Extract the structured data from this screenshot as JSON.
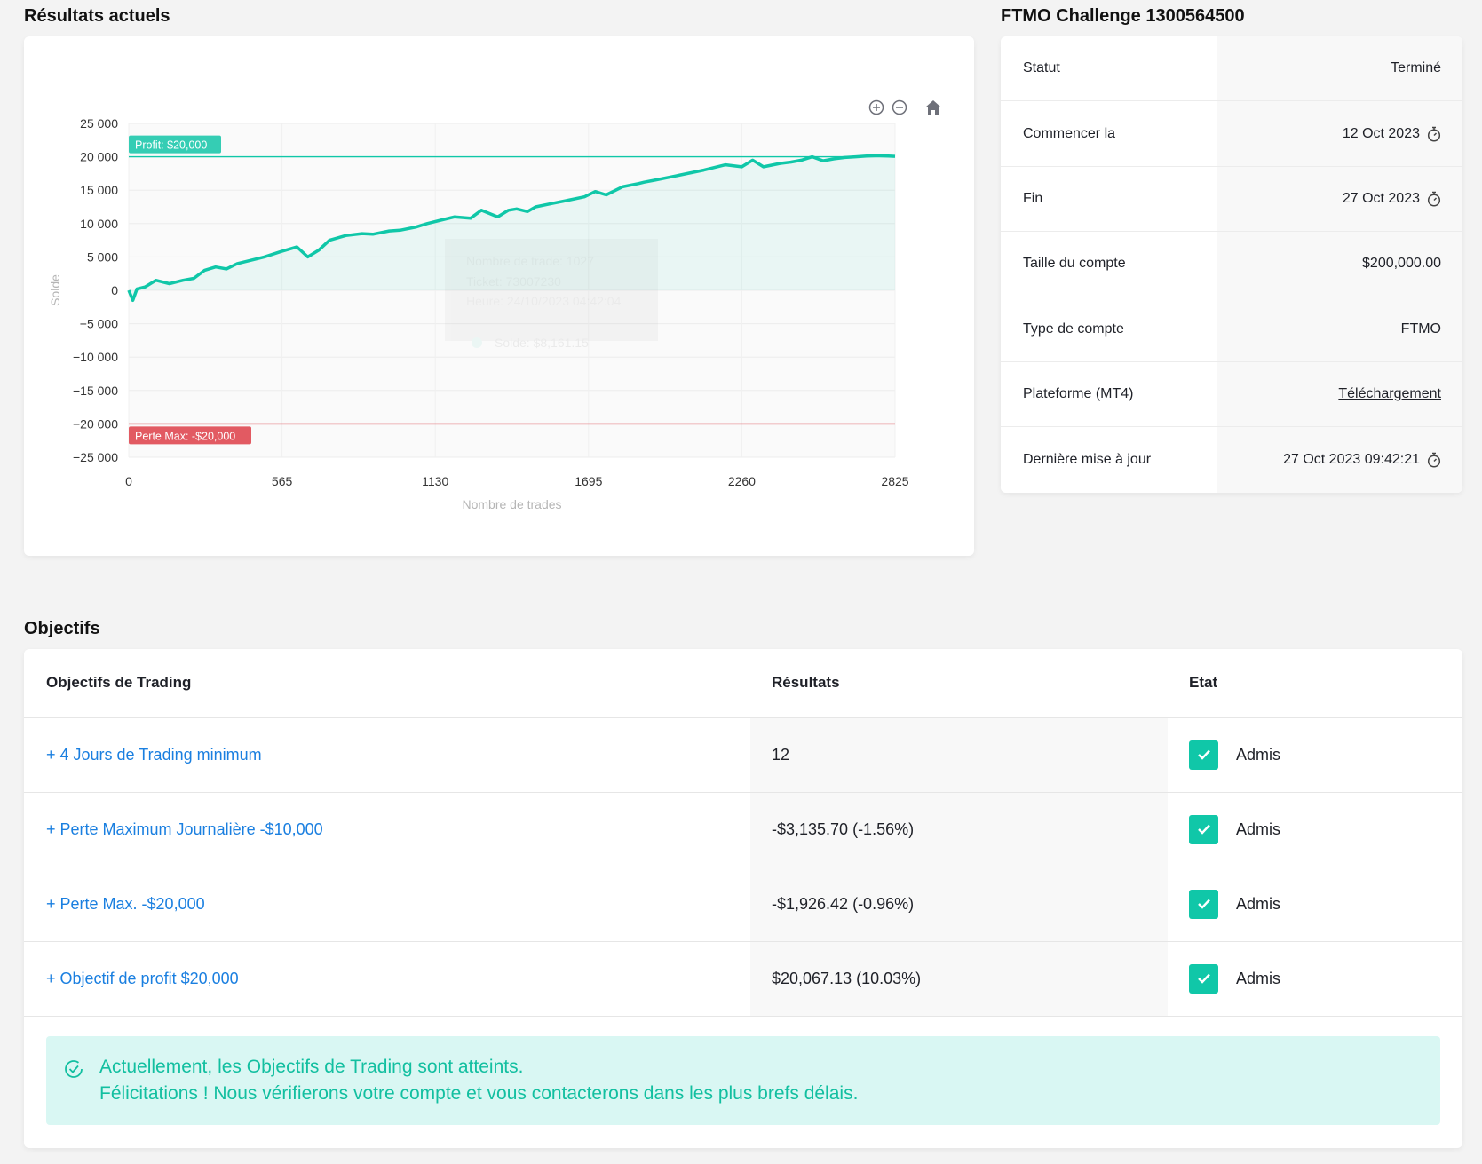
{
  "headings": {
    "results": "Résultats actuels",
    "account": "FTMO Challenge 1300564500",
    "objectives": "Objectifs"
  },
  "chart_data": {
    "type": "line",
    "title": "",
    "xlabel": "Nombre de trades",
    "ylabel": "Solde",
    "xlim": [
      0,
      2825
    ],
    "ylim": [
      -25000,
      25000
    ],
    "x_ticks": [
      0,
      565,
      1130,
      1695,
      2260,
      2825
    ],
    "y_ticks": [
      25000,
      20000,
      15000,
      10000,
      5000,
      0,
      -5000,
      -10000,
      -15000,
      -20000,
      -25000
    ],
    "x_tick_labels": [
      "0",
      "565",
      "1130",
      "1695",
      "2260",
      "2825"
    ],
    "y_tick_labels": [
      "25 000",
      "20 000",
      "15 000",
      "10 000",
      "5 000",
      "0",
      "−5 000",
      "−10 000",
      "−15 000",
      "−20 000",
      "−25 000"
    ],
    "series": [
      {
        "name": "Solde",
        "color": "#10c7a8",
        "x": [
          0,
          15,
          30,
          60,
          100,
          150,
          200,
          240,
          280,
          320,
          360,
          400,
          450,
          500,
          560,
          620,
          660,
          700,
          740,
          800,
          860,
          900,
          960,
          1000,
          1060,
          1100,
          1150,
          1200,
          1260,
          1300,
          1360,
          1400,
          1430,
          1470,
          1500,
          1560,
          1620,
          1680,
          1720,
          1760,
          1820,
          1880,
          1900,
          1940,
          2000,
          2060,
          2120,
          2200,
          2260,
          2300,
          2340,
          2400,
          2440,
          2480,
          2520,
          2560,
          2600,
          2640,
          2680,
          2720,
          2760,
          2825
        ],
        "y": [
          0,
          -1500,
          200,
          500,
          1500,
          1000,
          1500,
          1800,
          3000,
          3500,
          3200,
          4000,
          4500,
          5000,
          5800,
          6500,
          5000,
          6000,
          7500,
          8200,
          8500,
          8400,
          8900,
          9000,
          9500,
          10000,
          10500,
          11000,
          10800,
          12000,
          11000,
          12000,
          12200,
          11800,
          12500,
          13000,
          13500,
          14000,
          14800,
          14300,
          15500,
          16000,
          16200,
          16500,
          17000,
          17500,
          18000,
          18800,
          18500,
          19500,
          18500,
          19000,
          19200,
          19500,
          20000,
          19400,
          19700,
          19900,
          20000,
          20100,
          20200,
          20067
        ]
      }
    ],
    "profit_target": 20000,
    "max_loss": -20000,
    "profit_label": "Profit: $20,000",
    "loss_label": "Perte Max: -$20,000",
    "tooltip": {
      "line1": "Nombre de trade: 1027",
      "line2": "Ticket: 73007230",
      "line3": "Heure: 24/10/2023 04:42:04",
      "line4": "Solde: $8,161.15"
    },
    "grid": true,
    "legend": "none"
  },
  "info": [
    {
      "label": "Statut",
      "value": "Terminé",
      "icon": null
    },
    {
      "label": "Commencer la",
      "value": "12 Oct 2023",
      "icon": "stopwatch-icon"
    },
    {
      "label": "Fin",
      "value": "27 Oct 2023",
      "icon": "stopwatch-icon"
    },
    {
      "label": "Taille du compte",
      "value": "$200,000.00",
      "icon": null
    },
    {
      "label": "Type de compte",
      "value": "FTMO",
      "icon": null
    },
    {
      "label": "Plateforme (MT4)",
      "value": "Téléchargement",
      "icon": null,
      "link": true
    },
    {
      "label": "Dernière mise à jour",
      "value": "27 Oct 2023 09:42:21",
      "icon": "stopwatch-icon"
    }
  ],
  "objectives": {
    "headers": [
      "Objectifs de Trading",
      "Résultats",
      "Etat"
    ],
    "rows": [
      {
        "name": "+ 4 Jours de Trading minimum",
        "result": "12",
        "status": "Admis"
      },
      {
        "name": "+ Perte Maximum Journalière -$10,000",
        "result": "-$3,135.70 (-1.56%)",
        "status": "Admis"
      },
      {
        "name": "+ Perte Max. -$20,000",
        "result": "-$1,926.42 (-0.96%)",
        "status": "Admis"
      },
      {
        "name": "+ Objectif de profit $20,000",
        "result": "$20,067.13 (10.03%)",
        "status": "Admis"
      }
    ]
  },
  "alert": {
    "line1": "Actuellement, les Objectifs de Trading sont atteints.",
    "line2": "Félicitations ! Nous vérifierons votre compte et vous contacterons dans les plus brefs délais."
  },
  "colors": {
    "accent": "#10c7a8",
    "loss": "#e0464f",
    "link": "#1a7fe0",
    "alert_bg": "#d9f7f3"
  }
}
